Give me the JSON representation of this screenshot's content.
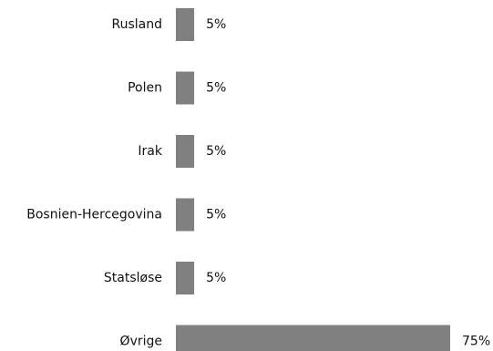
{
  "chart_data": {
    "type": "bar",
    "orientation": "horizontal",
    "categories": [
      "Rusland",
      "Polen",
      "Irak",
      "Bosnien-Hercegovina",
      "Statsløse",
      "Øvrige"
    ],
    "values": [
      5,
      5,
      5,
      5,
      5,
      75
    ],
    "value_labels": [
      "5%",
      "5%",
      "5%",
      "5%",
      "5%",
      "75%"
    ],
    "xlim": [
      0,
      75
    ],
    "grid": false,
    "bar_color": "#808080"
  }
}
